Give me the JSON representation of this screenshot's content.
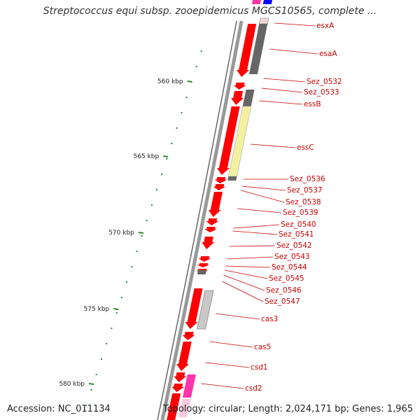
{
  "title": "Streptococcus equi subsp. zooepidemicus MGCS10565, complete ...",
  "accession": "Accession: NC_011134",
  "topology": "Topology: circular; Length: 2,024,171 bp; Genes: 1,965",
  "colors": {
    "cds": "#ff0000",
    "gray": "#666666",
    "label": "#cc0000",
    "tick": "#2a8a2a",
    "pink": "#ff33aa",
    "yellow": "#f5f0a0",
    "blue": "#0000ff"
  },
  "kbp_ticks": [
    "560 kbp",
    "565 kbp",
    "570 kbp",
    "575 kbp",
    "580 kbp"
  ],
  "gene_labels": [
    "esxA",
    "esaA",
    "Sez_0532",
    "Sez_0533",
    "essB",
    "essC",
    "Sez_0536",
    "Sez_0537",
    "Sez_0538",
    "Sez_0539",
    "Sez_0540",
    "Sez_0541",
    "Sez_0542",
    "Sez_0543",
    "Sez_0544",
    "Sez_0545",
    "Sez_0546",
    "Sez_0547",
    "cas3",
    "cas5",
    "csd1",
    "csd2"
  ]
}
